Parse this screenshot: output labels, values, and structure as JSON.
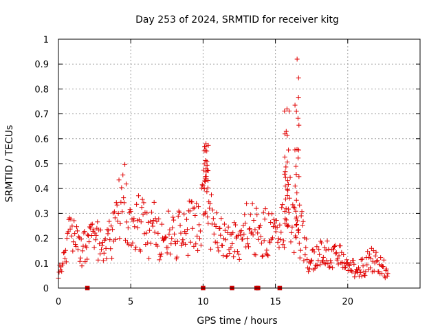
{
  "chart_data": {
    "type": "scatter",
    "title": "Day 253 of 2024, SRMTID for receiver kitg",
    "xlabel": "GPS time / hours",
    "ylabel": "SRMTID / TECUs",
    "xlim": [
      0,
      25
    ],
    "ylim": [
      0,
      1
    ],
    "grid": true,
    "marker": "plus",
    "color": "#e00000",
    "x_ticks": [
      "0",
      "5",
      "10",
      "15",
      "20"
    ],
    "x_tick_values": [
      0,
      5,
      10,
      15,
      20
    ],
    "y_ticks": [
      "0",
      "0.1",
      "0.2",
      "0.3",
      "0.4",
      "0.5",
      "0.6",
      "0.7",
      "0.8",
      "0.9",
      "1"
    ],
    "y_tick_values": [
      0,
      0.1,
      0.2,
      0.3,
      0.4,
      0.5,
      0.6,
      0.7,
      0.8,
      0.9,
      1
    ],
    "trend": [
      [
        0.0,
        0.07
      ],
      [
        0.3,
        0.09
      ],
      [
        0.5,
        0.13
      ],
      [
        0.7,
        0.2
      ],
      [
        1.0,
        0.22
      ],
      [
        1.2,
        0.21
      ],
      [
        1.4,
        0.19
      ],
      [
        1.6,
        0.15
      ],
      [
        1.8,
        0.18
      ],
      [
        2.0,
        0.16
      ],
      [
        2.3,
        0.18
      ],
      [
        2.6,
        0.2
      ],
      [
        3.0,
        0.17
      ],
      [
        3.4,
        0.2
      ],
      [
        3.7,
        0.19
      ],
      [
        4.0,
        0.28
      ],
      [
        4.3,
        0.32
      ],
      [
        4.6,
        0.35
      ],
      [
        5.0,
        0.27
      ],
      [
        5.3,
        0.26
      ],
      [
        5.6,
        0.27
      ],
      [
        6.0,
        0.24
      ],
      [
        6.3,
        0.2
      ],
      [
        6.6,
        0.25
      ],
      [
        7.0,
        0.2
      ],
      [
        7.3,
        0.21
      ],
      [
        7.6,
        0.24
      ],
      [
        8.0,
        0.2
      ],
      [
        8.3,
        0.22
      ],
      [
        8.6,
        0.2
      ],
      [
        9.0,
        0.24
      ],
      [
        9.3,
        0.28
      ],
      [
        9.6,
        0.26
      ],
      [
        10.0,
        0.33
      ],
      [
        10.2,
        0.46
      ],
      [
        10.5,
        0.28
      ],
      [
        10.8,
        0.22
      ],
      [
        11.2,
        0.2
      ],
      [
        11.6,
        0.18
      ],
      [
        12.0,
        0.2
      ],
      [
        12.4,
        0.19
      ],
      [
        12.8,
        0.22
      ],
      [
        13.2,
        0.25
      ],
      [
        13.6,
        0.24
      ],
      [
        14.0,
        0.2
      ],
      [
        14.4,
        0.24
      ],
      [
        14.8,
        0.22
      ],
      [
        15.2,
        0.2
      ],
      [
        15.5,
        0.24
      ],
      [
        15.8,
        0.28
      ],
      [
        16.0,
        0.33
      ],
      [
        16.3,
        0.25
      ],
      [
        16.6,
        0.2
      ],
      [
        16.9,
        0.22
      ],
      [
        17.2,
        0.12
      ],
      [
        17.6,
        0.11
      ],
      [
        18.0,
        0.13
      ],
      [
        18.4,
        0.14
      ],
      [
        18.8,
        0.12
      ],
      [
        19.2,
        0.13
      ],
      [
        19.6,
        0.14
      ],
      [
        20.0,
        0.12
      ],
      [
        20.4,
        0.08
      ],
      [
        20.8,
        0.08
      ],
      [
        21.2,
        0.09
      ],
      [
        21.6,
        0.12
      ],
      [
        22.0,
        0.1
      ],
      [
        22.4,
        0.09
      ],
      [
        22.8,
        0.05
      ]
    ],
    "bursts": [
      {
        "x": 10.2,
        "y": 0.58
      },
      {
        "x": 15.8,
        "y": 0.72
      },
      {
        "x": 16.5,
        "y": 0.92
      }
    ],
    "zero_flags": [
      2.0,
      10.0,
      12.0,
      13.7,
      13.8,
      15.3
    ]
  }
}
